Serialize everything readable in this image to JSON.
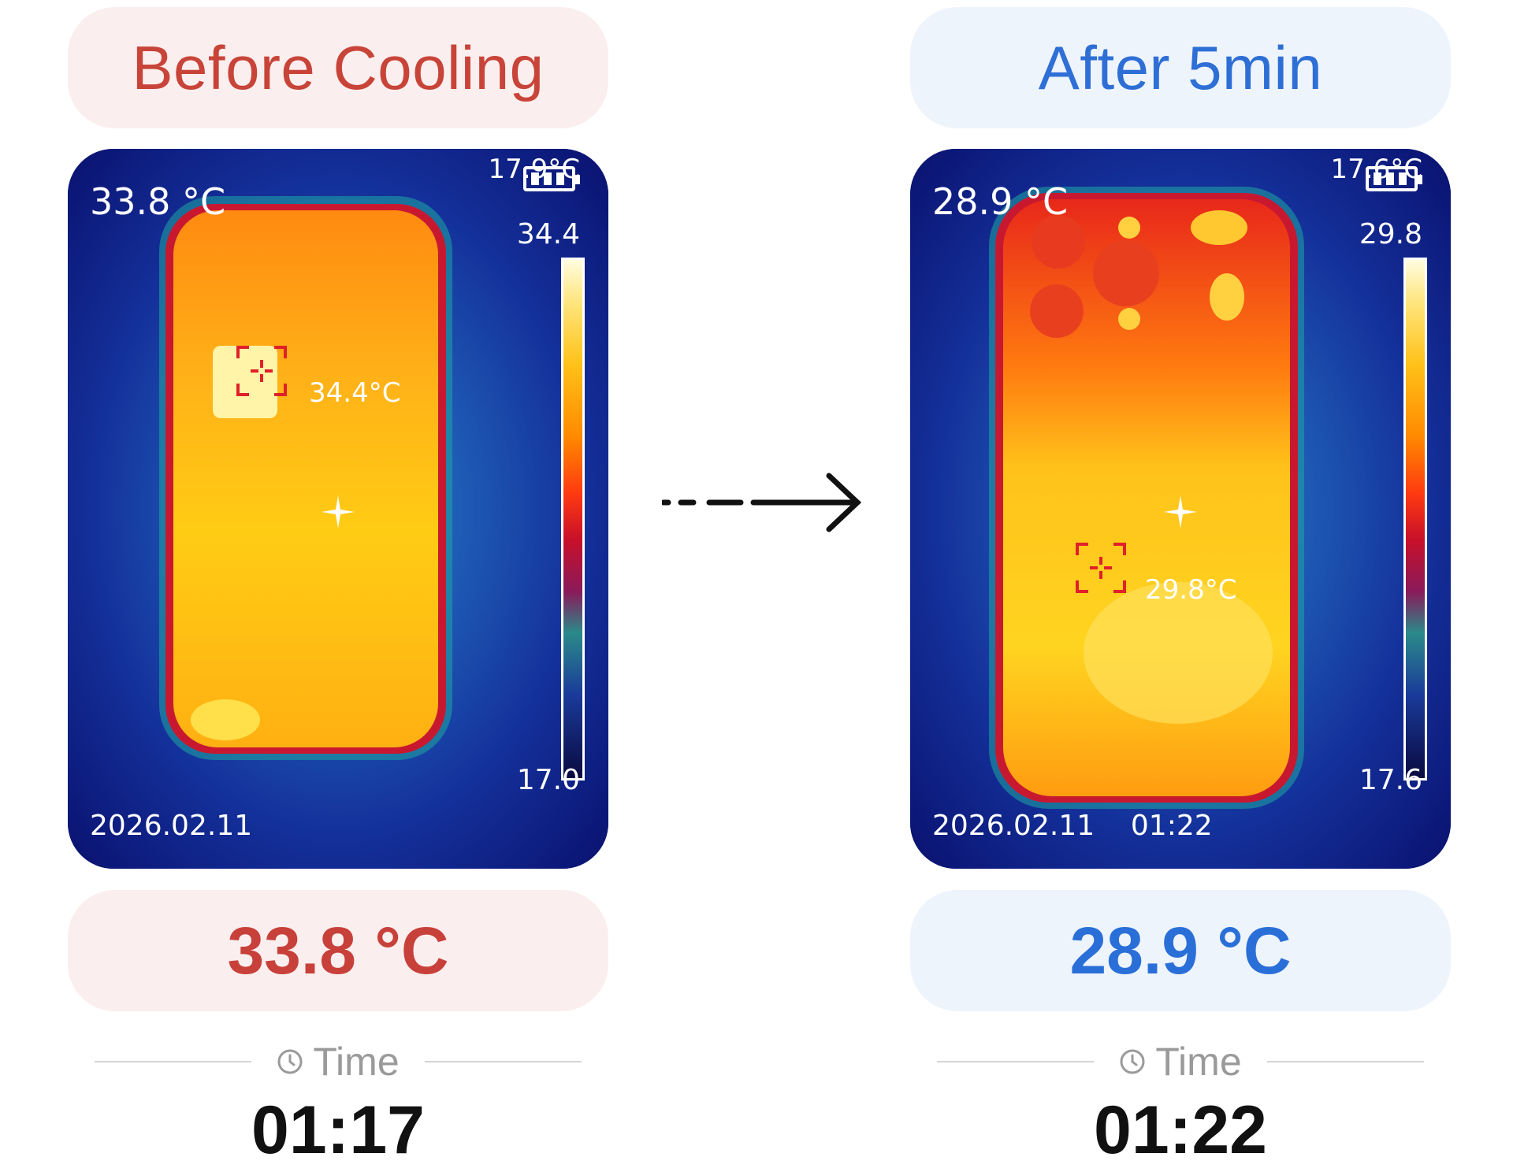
{
  "before": {
    "title": "Before Cooling",
    "thermal": {
      "readout": "33.8 °C",
      "corner_text": "17.9°C",
      "scale_max": "34.4",
      "scale_min": "17.0",
      "spot_label": "34.4°C",
      "timestamp": "2026.02.11"
    },
    "temperature": "33.8 °C",
    "time_label": "Time",
    "time_value": "01:17"
  },
  "after": {
    "title": "After 5min",
    "thermal": {
      "readout": "28.9 °C",
      "corner_text": "17.6°C",
      "scale_max": "29.8",
      "scale_min": "17.6",
      "spot_label": "29.8°C",
      "timestamp": "2026.02.11    01:22"
    },
    "temperature": "28.9 °C",
    "time_label": "Time",
    "time_value": "01:22"
  },
  "colors": {
    "before_accent": "#c8403a",
    "after_accent": "#2a6fd8",
    "before_bg": "#fbeeee",
    "after_bg": "#eef4fc"
  },
  "icons": [
    "clock-icon",
    "battery-icon",
    "crosshair-icon",
    "arrow-right-icon"
  ]
}
